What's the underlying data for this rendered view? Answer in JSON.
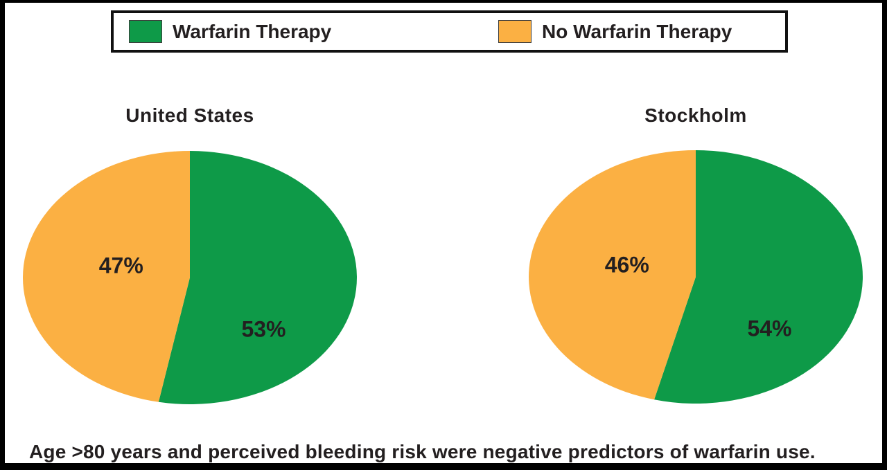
{
  "figure": {
    "caption": "Age >80 years and perceived bleeding risk were negative predictors of warfarin use."
  },
  "colors": {
    "warfarin_green": "#0E9A48",
    "no_warfarin_orange": "#FBB043",
    "text_black": "#231F20",
    "border_black": "#000000",
    "background": "#FFFFFF"
  },
  "legend": {
    "items": [
      {
        "label": "Warfarin Therapy",
        "color": "#0E9A48"
      },
      {
        "label": "No Warfarin Therapy",
        "color": "#FBB043"
      }
    ]
  },
  "chart_data": [
    {
      "type": "pie",
      "title": "United States",
      "shape": "ellipse",
      "start_angle_deg": 0,
      "direction": "clockwise",
      "legend_position": "top",
      "slices": [
        {
          "label": "Warfarin Therapy",
          "value": 53,
          "display": "53%",
          "color": "#0E9A48"
        },
        {
          "label": "No Warfarin Therapy",
          "value": 47,
          "display": "47%",
          "color": "#FBB043"
        }
      ]
    },
    {
      "type": "pie",
      "title": "Stockholm",
      "shape": "ellipse",
      "start_angle_deg": 0,
      "direction": "clockwise",
      "legend_position": "top",
      "slices": [
        {
          "label": "Warfarin Therapy",
          "value": 54,
          "display": "54%",
          "color": "#0E9A48"
        },
        {
          "label": "No Warfarin Therapy",
          "value": 46,
          "display": "46%",
          "color": "#FBB043"
        }
      ]
    }
  ]
}
